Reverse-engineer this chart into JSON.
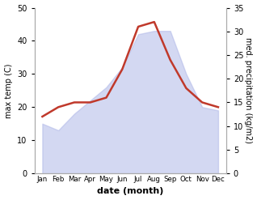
{
  "months": [
    "Jan",
    "Feb",
    "Mar",
    "Apr",
    "May",
    "Jun",
    "Jul",
    "Aug",
    "Sep",
    "Oct",
    "Nov",
    "Dec"
  ],
  "temp": [
    15,
    13,
    18,
    22,
    26,
    32,
    42,
    43,
    43,
    30,
    20,
    19
  ],
  "precip": [
    12,
    14,
    15,
    15,
    16,
    22,
    31,
    32,
    24,
    18,
    15,
    14
  ],
  "temp_color": "#b0b8e8",
  "precip_color": "#c0392b",
  "xlabel": "date (month)",
  "ylabel_left": "max temp (C)",
  "ylabel_right": "med. precipitation (kg/m2)",
  "ylim_left": [
    0,
    50
  ],
  "ylim_right": [
    0,
    35
  ],
  "yticks_left": [
    0,
    10,
    20,
    30,
    40,
    50
  ],
  "yticks_right": [
    0,
    5,
    10,
    15,
    20,
    25,
    30,
    35
  ],
  "bg_color": "#ffffff",
  "fill_alpha": 0.55
}
